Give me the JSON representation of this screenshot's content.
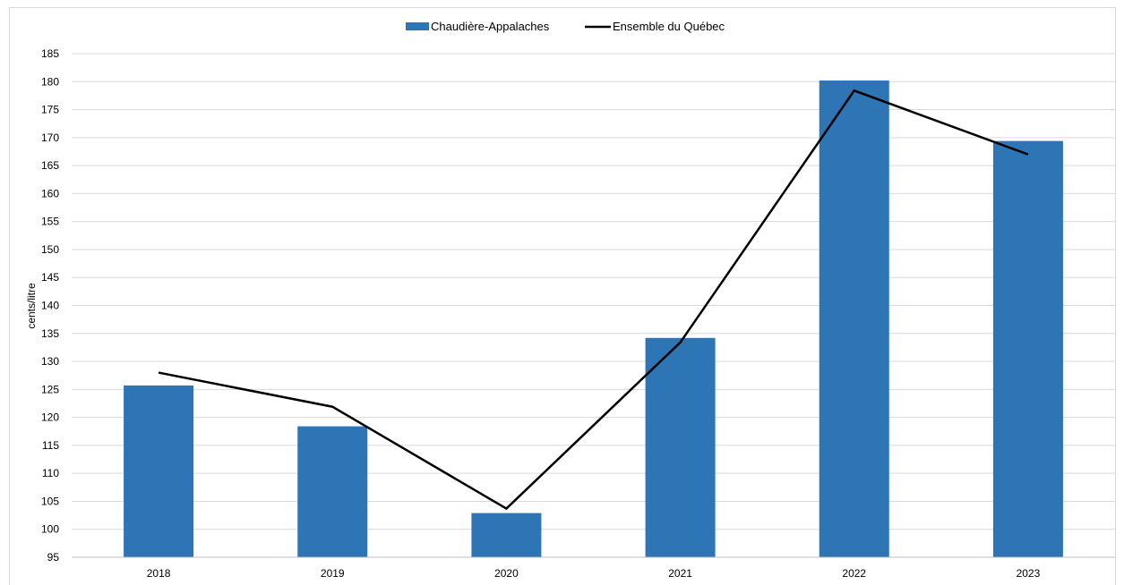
{
  "chart_data": {
    "type": "bar",
    "categories": [
      "2018",
      "2019",
      "2020",
      "2021",
      "2022",
      "2023"
    ],
    "series": [
      {
        "name": "Chaudière-Appalaches",
        "type": "bar",
        "color": "#2E75B6",
        "values": [
          125.7,
          118.4,
          102.9,
          134.2,
          180.2,
          169.4
        ]
      },
      {
        "name": "Ensemble du Québec",
        "type": "line",
        "color": "#000000",
        "values": [
          128.0,
          121.9,
          103.7,
          133.4,
          178.4,
          167.0
        ]
      }
    ],
    "ylabel": "cents/litre",
    "ylim": [
      95,
      185
    ],
    "yticks": [
      95,
      100,
      105,
      110,
      115,
      120,
      125,
      130,
      135,
      140,
      145,
      150,
      155,
      160,
      165,
      170,
      175,
      180,
      185
    ],
    "grid": true,
    "legend_position": "top-center"
  }
}
